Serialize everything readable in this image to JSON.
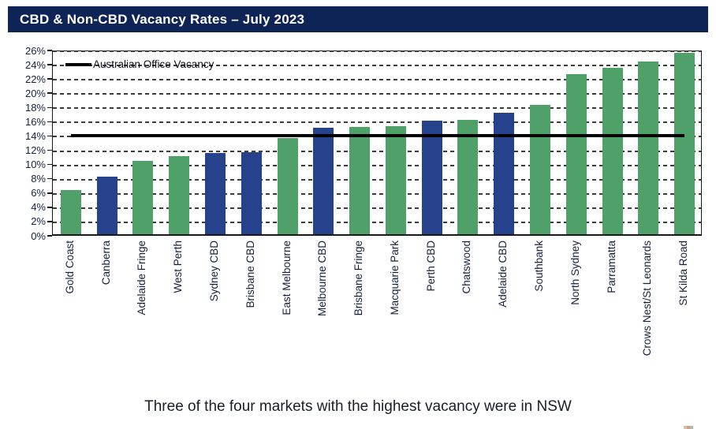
{
  "header": {
    "title": "CBD & Non-CBD Vacancy Rates – July 2023"
  },
  "caption": "Three of the four markets with the highest vacancy were in NSW",
  "colors": {
    "header_bg": "#0e2356",
    "header_text": "#ffffff",
    "cbd_bar_blue": "#27428c",
    "non_cbd_bar_green": "#4fa169",
    "reference_line": "#000000",
    "gridline": "#3c3c3c",
    "axis_text": "#16213e"
  },
  "chart_data": {
    "type": "bar",
    "title": "CBD & Non-CBD Vacancy Rates – July 2023",
    "unit": "%",
    "categories": [
      "Gold Coast",
      "Canberra",
      "Adelaide Fringe",
      "West Perth",
      "Sydney CBD",
      "Brisbane CBD",
      "East Melbourne",
      "Melbourne CBD",
      "Brisbane Fringe",
      "Macquarie Park",
      "Perth CBD",
      "Chatswood",
      "Adelaide CBD",
      "Southbank",
      "North Sydney",
      "Parramatta",
      "Crows Nest/St Leonards",
      "St Kilda Road"
    ],
    "values": [
      6.2,
      8.1,
      10.3,
      11.0,
      11.4,
      11.5,
      13.5,
      14.9,
      15.1,
      15.2,
      15.9,
      16.0,
      17.0,
      18.2,
      22.5,
      23.4,
      24.2,
      25.5
    ],
    "bar_types": [
      "non_cbd",
      "cbd",
      "non_cbd",
      "non_cbd",
      "cbd",
      "cbd",
      "non_cbd",
      "cbd",
      "non_cbd",
      "non_cbd",
      "cbd",
      "non_cbd",
      "cbd",
      "non_cbd",
      "non_cbd",
      "non_cbd",
      "non_cbd",
      "non_cbd"
    ],
    "ylim": [
      0,
      26
    ],
    "y_tick_step": 2,
    "y_tick_labels": [
      "0%",
      "2%",
      "4%",
      "6%",
      "8%",
      "10%",
      "12%",
      "14%",
      "16%",
      "18%",
      "20%",
      "22%",
      "24%",
      "26%"
    ],
    "grid": "dashed-horizontal",
    "legend_position": "top-left-inside",
    "reference_line": {
      "label": "Australian Office Vacancy",
      "value": 14.2,
      "span": "first-category-center-to-last-category-center"
    }
  }
}
